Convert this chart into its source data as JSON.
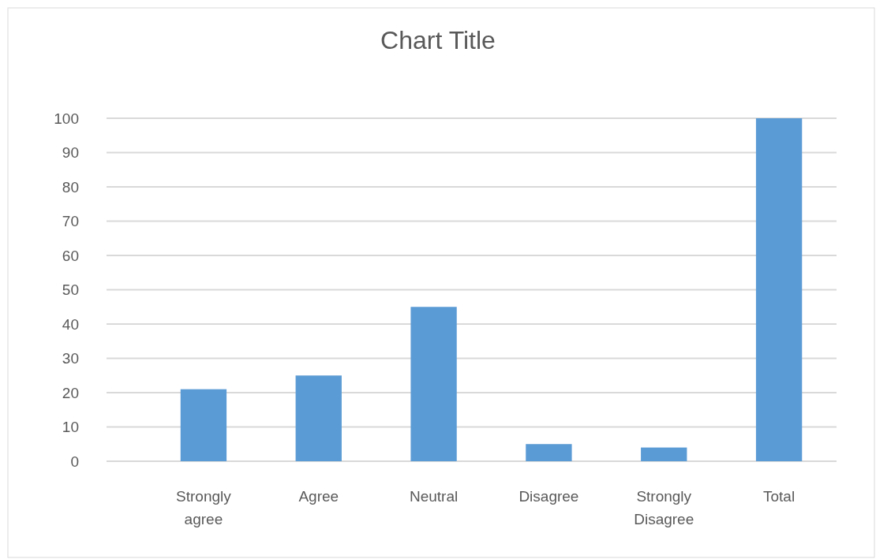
{
  "chart_data": {
    "type": "bar",
    "title": "Chart Title",
    "categories": [
      "Strongly agree",
      "Agree",
      "Neutral",
      "Disagree",
      "Strongly Disagree",
      "Total"
    ],
    "values": [
      21,
      25,
      45,
      5,
      4,
      100
    ],
    "color": "#5b9bd5",
    "ylim": [
      0,
      100
    ],
    "yticks": [
      0,
      10,
      20,
      30,
      40,
      50,
      60,
      70,
      80,
      90,
      100
    ],
    "grid": "y"
  }
}
